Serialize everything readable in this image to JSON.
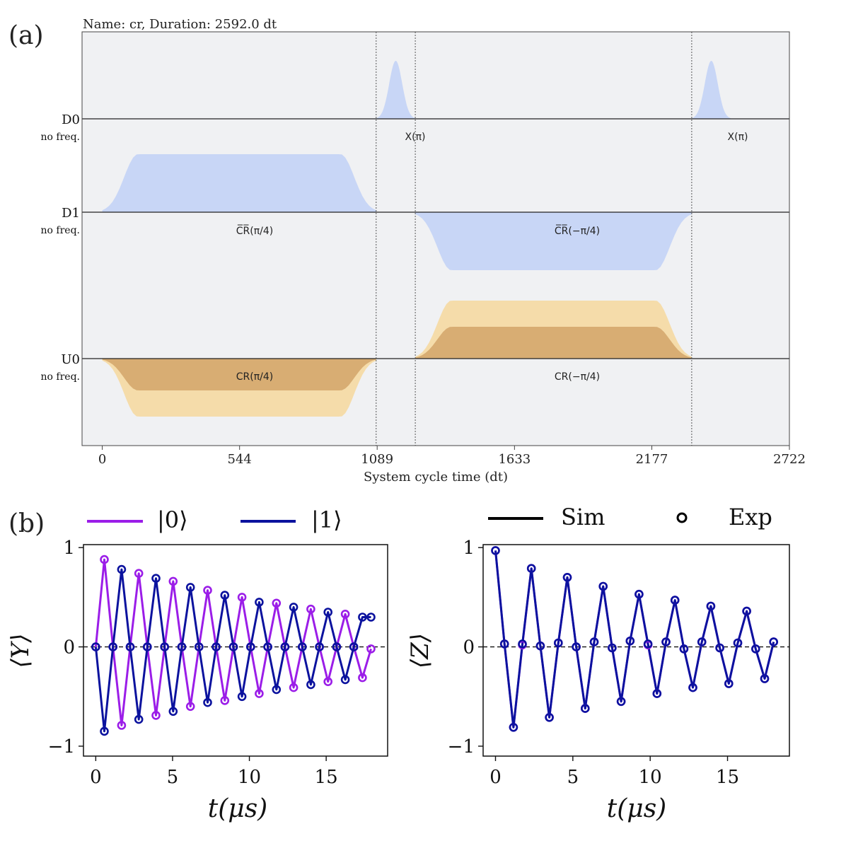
{
  "panel_labels": {
    "a": "(a)",
    "b": "(b)"
  },
  "chart_data": [
    {
      "type": "pulse_schedule",
      "title": "Name: cr, Duration: 2592.0 dt",
      "xlabel": "System cycle time (dt)",
      "xticks": [
        0,
        544,
        1089,
        1633,
        2177,
        2722
      ],
      "xlim": [
        -80,
        2722
      ],
      "duration": 2592,
      "channels": [
        {
          "name": "D0",
          "sub": "no freq."
        },
        {
          "name": "D1",
          "sub": "no freq."
        },
        {
          "name": "U0",
          "sub": "no freq."
        }
      ],
      "barriers": [
        1085,
        1240,
        2335
      ],
      "pulses": [
        {
          "channel": "D0",
          "kind": "gaussian",
          "start": 1085,
          "end": 1240,
          "amp": 0.62,
          "label": "X(π)"
        },
        {
          "channel": "D0",
          "kind": "gaussian",
          "start": 2335,
          "end": 2490,
          "amp": 0.62,
          "label": "X(π)"
        },
        {
          "channel": "D1",
          "kind": "gaussian_square",
          "start": 0,
          "end": 1085,
          "amp": 0.62,
          "label": "C̅R̅(π/4)"
        },
        {
          "channel": "D1",
          "kind": "gaussian_square",
          "start": 1240,
          "end": 2335,
          "amp": -0.62,
          "label": "C̅R̅(−π/4)"
        },
        {
          "channel": "U0",
          "kind": "gaussian_square",
          "start": 0,
          "end": 1085,
          "amp": -0.62,
          "amp_inner": -0.34,
          "label": "CR(π/4)"
        },
        {
          "channel": "U0",
          "kind": "gaussian_square",
          "start": 1240,
          "end": 2335,
          "amp": 0.62,
          "amp_inner": 0.34,
          "label": "CR(−π/4)"
        }
      ],
      "colors": {
        "drive": "#c8d6f6",
        "u_outer": "#f5dcaa",
        "u_inner": "#d8ad73",
        "bg": "#f0f1f3",
        "barrier": "#555555"
      }
    },
    {
      "type": "line",
      "ylabel": "⟨Y⟩",
      "xlabel": "t(μs)",
      "xlim": [
        -0.8,
        19
      ],
      "ylim": [
        -1.1,
        1.03
      ],
      "xticks": [
        0,
        5,
        10,
        15
      ],
      "yticks": [
        -1,
        0,
        1
      ],
      "ytick_labels": [
        "−1",
        "0",
        "1"
      ],
      "legend": [
        {
          "label": "|0⟩",
          "color": "#9b1de8"
        },
        {
          "label": "|1⟩",
          "color": "#0b129e"
        }
      ],
      "series": [
        {
          "name": "|0⟩",
          "color": "#9b1de8",
          "x": [
            0,
            0.56,
            1.12,
            1.68,
            2.24,
            2.8,
            3.36,
            3.92,
            4.48,
            5.04,
            5.6,
            6.16,
            6.72,
            7.28,
            7.84,
            8.4,
            8.96,
            9.52,
            10.08,
            10.64,
            11.2,
            11.76,
            12.32,
            12.88,
            13.44,
            14.0,
            14.56,
            15.12,
            15.68,
            16.24,
            16.8,
            17.36,
            17.92
          ],
          "y": [
            0,
            0.88,
            0,
            -0.79,
            0,
            0.74,
            0,
            -0.69,
            0,
            0.66,
            0,
            -0.6,
            0,
            0.57,
            0,
            -0.54,
            0,
            0.5,
            0,
            -0.47,
            0,
            0.44,
            0,
            -0.41,
            0,
            0.38,
            0,
            -0.35,
            0,
            0.33,
            0,
            -0.31,
            -0.02
          ]
        },
        {
          "name": "|1⟩",
          "color": "#0b129e",
          "x": [
            0,
            0.56,
            1.12,
            1.68,
            2.24,
            2.8,
            3.36,
            3.92,
            4.48,
            5.04,
            5.6,
            6.16,
            6.72,
            7.28,
            7.84,
            8.4,
            8.96,
            9.52,
            10.08,
            10.64,
            11.2,
            11.76,
            12.32,
            12.88,
            13.44,
            14.0,
            14.56,
            15.12,
            15.68,
            16.24,
            16.8,
            17.36,
            17.92
          ],
          "y": [
            0,
            -0.85,
            0,
            0.78,
            0,
            -0.73,
            0,
            0.69,
            0,
            -0.65,
            0,
            0.6,
            0,
            -0.56,
            0,
            0.52,
            0,
            -0.5,
            0,
            0.45,
            0,
            -0.43,
            0,
            0.4,
            0,
            -0.38,
            0,
            0.35,
            0,
            -0.33,
            0,
            0.3,
            0.3
          ]
        }
      ]
    },
    {
      "type": "line",
      "ylabel": "⟨Z⟩",
      "xlabel": "t(μs)",
      "xlim": [
        -0.8,
        19
      ],
      "ylim": [
        -1.1,
        1.03
      ],
      "xticks": [
        0,
        5,
        10,
        15
      ],
      "yticks": [
        -1,
        0,
        1
      ],
      "ytick_labels": [
        "−1",
        "0",
        "1"
      ],
      "legend": [
        {
          "label": "Sim",
          "marker": "line",
          "color": "#000000"
        },
        {
          "label": "Exp",
          "marker": "circle",
          "color": "#000000"
        }
      ],
      "series": [
        {
          "name": "|0⟩",
          "color": "#9b1de8",
          "x": [
            0,
            0.58,
            1.16,
            1.74,
            2.32,
            2.9,
            3.48,
            4.06,
            4.64,
            5.22,
            5.8,
            6.38,
            6.96,
            7.54,
            8.12,
            8.7,
            9.28,
            9.86,
            10.44,
            11.02,
            11.6,
            12.18,
            12.76,
            13.34,
            13.92,
            14.5,
            15.08,
            15.66,
            16.24,
            16.82,
            17.4,
            17.98
          ],
          "y": [
            0.97,
            0.03,
            -0.81,
            0.02,
            0.79,
            0.01,
            -0.71,
            0.04,
            0.7,
            0.0,
            -0.62,
            0.05,
            0.61,
            -0.01,
            -0.55,
            0.06,
            0.53,
            0.02,
            -0.47,
            0.05,
            0.47,
            -0.02,
            -0.41,
            0.05,
            0.41,
            -0.01,
            -0.37,
            0.04,
            0.36,
            -0.02,
            -0.32,
            0.05
          ]
        },
        {
          "name": "|1⟩",
          "color": "#0b129e",
          "x": [
            0,
            0.58,
            1.16,
            1.74,
            2.32,
            2.9,
            3.48,
            4.06,
            4.64,
            5.22,
            5.8,
            6.38,
            6.96,
            7.54,
            8.12,
            8.7,
            9.28,
            9.86,
            10.44,
            11.02,
            11.6,
            12.18,
            12.76,
            13.34,
            13.92,
            14.5,
            15.08,
            15.66,
            16.24,
            16.82,
            17.4,
            17.98
          ],
          "y": [
            0.97,
            0.03,
            -0.81,
            0.03,
            0.79,
            0.01,
            -0.71,
            0.04,
            0.7,
            0.0,
            -0.62,
            0.05,
            0.61,
            -0.01,
            -0.55,
            0.06,
            0.53,
            0.03,
            -0.47,
            0.05,
            0.47,
            -0.02,
            -0.41,
            0.05,
            0.41,
            -0.01,
            -0.37,
            0.04,
            0.36,
            -0.02,
            -0.32,
            0.05
          ]
        }
      ]
    }
  ]
}
